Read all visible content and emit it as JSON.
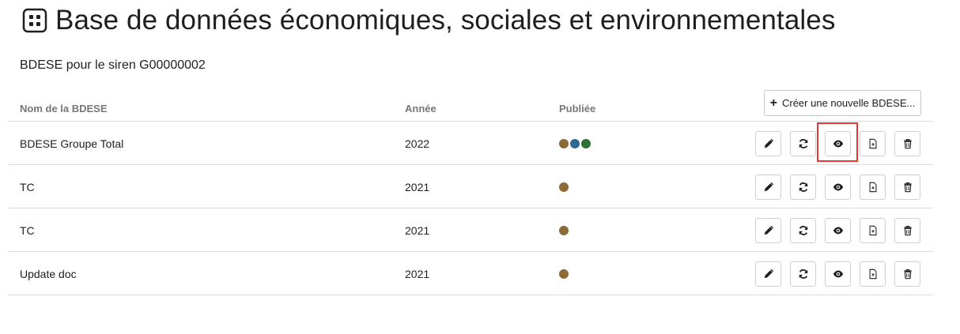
{
  "page": {
    "title": "Base de données économiques, sociales et environnementales",
    "subtitle": "BDESE pour le siren G00000002"
  },
  "actions": {
    "create_label": "Créer une nouvelle BDESE..."
  },
  "table": {
    "headers": [
      "Nom de la BDESE",
      "Année",
      "Publiée"
    ],
    "rows": [
      {
        "name": "BDESE Groupe Total",
        "year": "2022",
        "published_dots": [
          "#8b6a35",
          "#2c6a94",
          "#2e7033"
        ]
      },
      {
        "name": "TC",
        "year": "2021",
        "published_dots": [
          "#8b6a35"
        ]
      },
      {
        "name": "TC",
        "year": "2021",
        "published_dots": [
          "#8b6a35"
        ]
      },
      {
        "name": "Update doc",
        "year": "2021",
        "published_dots": [
          "#8b6a35"
        ]
      }
    ],
    "row_action_icons": [
      "pencil-icon",
      "sync-icon",
      "eye-icon",
      "document-icon",
      "trash-icon"
    ]
  },
  "highlight": {
    "color": "#e53935",
    "target": "row 1 view button"
  }
}
